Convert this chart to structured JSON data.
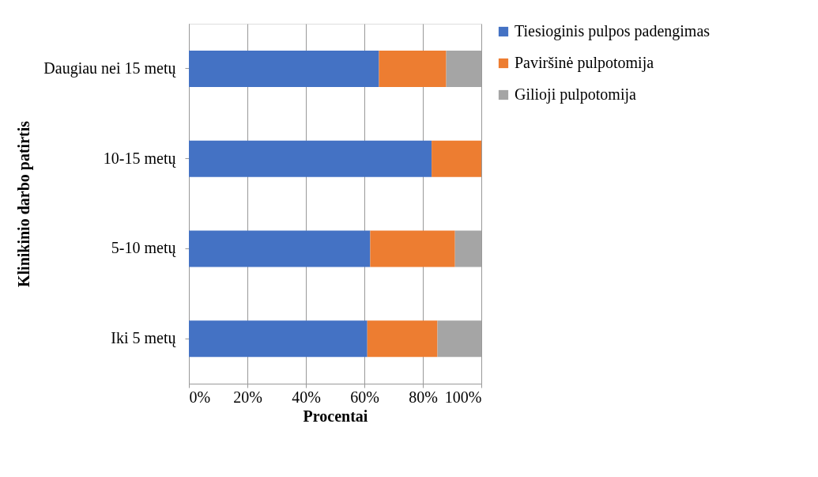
{
  "chart_data": {
    "type": "bar",
    "orientation": "horizontal",
    "stacked": true,
    "xlabel": "Procentai",
    "ylabel": "Klinikinio darbo patirtis",
    "categories": [
      "Daugiau nei 15 metų",
      "10-15 metų",
      "5-10 metų",
      "Iki 5 metų"
    ],
    "series": [
      {
        "name": "Tiesioginis pulpos padengimas",
        "color": "#4472c4",
        "values": [
          65,
          83,
          62,
          61
        ]
      },
      {
        "name": "Paviršinė pulpotomija",
        "color": "#ed7d31",
        "values": [
          23,
          17,
          29,
          24
        ]
      },
      {
        "name": "Gilioji pulpotomija",
        "color": "#a5a5a5",
        "values": [
          12,
          0,
          9,
          15
        ]
      }
    ],
    "xlim": [
      0,
      100
    ],
    "xticks": [
      {
        "value": 0,
        "label": "0%"
      },
      {
        "value": 20,
        "label": "20%"
      },
      {
        "value": 40,
        "label": "40%"
      },
      {
        "value": 60,
        "label": "60%"
      },
      {
        "value": 80,
        "label": "80%"
      },
      {
        "value": 100,
        "label": "100%"
      }
    ],
    "grid": "x",
    "legend": "right"
  }
}
